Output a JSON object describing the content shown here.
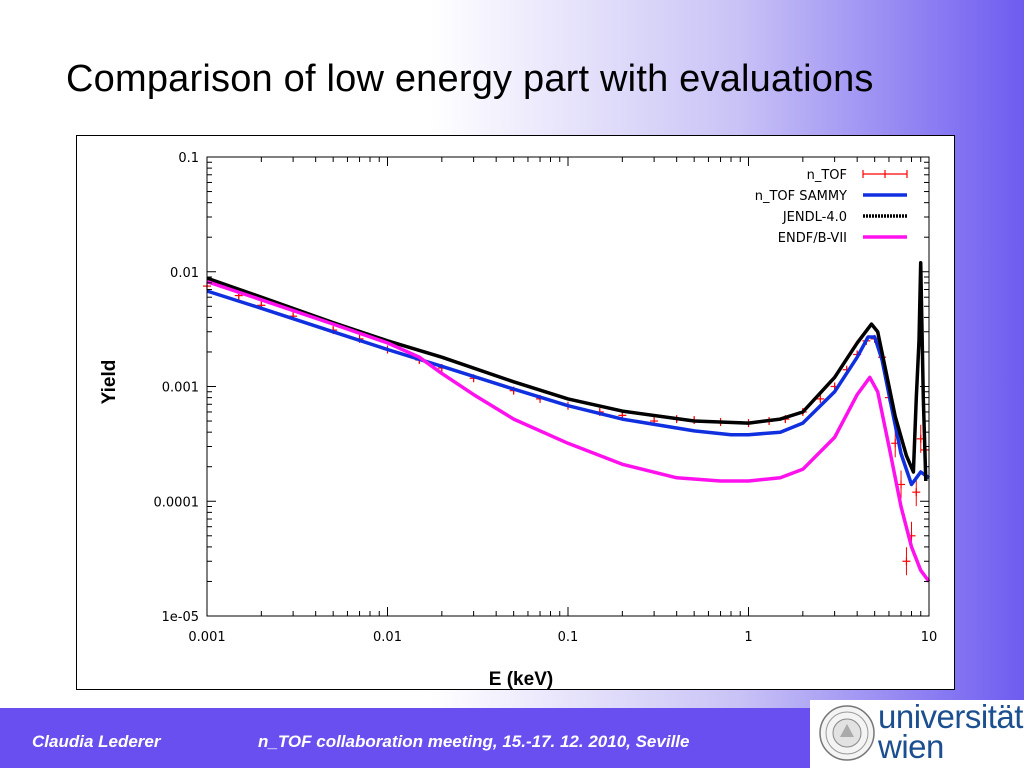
{
  "slide": {
    "title": "Comparison of low energy part with evaluations"
  },
  "footer": {
    "author": "Claudia Lederer",
    "meeting": "n_TOF collaboration meeting, 15.-17. 12. 2010, Seville",
    "logo_line1": "universität",
    "logo_line2": "wien",
    "background_color": "#6a4ff0"
  },
  "chart_data": {
    "type": "line",
    "xscale": "log",
    "yscale": "log",
    "xlabel": "E (keV)",
    "ylabel": "Yield",
    "xlim": [
      0.001,
      10
    ],
    "ylim": [
      1e-05,
      0.1
    ],
    "x_ticks": [
      "0.001",
      "0.01",
      "0.1",
      "1",
      "10"
    ],
    "y_ticks": [
      "0.1",
      "0.01",
      "0.001",
      "0.0001",
      "1e-05"
    ],
    "legend_position": "top-right",
    "series": [
      {
        "name": "n_TOF",
        "color": "#ff0000",
        "style": "points-with-errorbars",
        "points": [
          [
            0.001,
            0.0075
          ],
          [
            0.0015,
            0.0062
          ],
          [
            0.002,
            0.0051
          ],
          [
            0.003,
            0.0041
          ],
          [
            0.005,
            0.0031
          ],
          [
            0.007,
            0.0026
          ],
          [
            0.01,
            0.0021
          ],
          [
            0.015,
            0.0017
          ],
          [
            0.02,
            0.00145
          ],
          [
            0.03,
            0.00118
          ],
          [
            0.05,
            0.00092
          ],
          [
            0.07,
            0.00078
          ],
          [
            0.1,
            0.00068
          ],
          [
            0.15,
            0.0006
          ],
          [
            0.2,
            0.00056
          ],
          [
            0.3,
            0.0005
          ],
          [
            0.4,
            0.00052
          ],
          [
            0.5,
            0.00051
          ],
          [
            0.7,
            0.00049
          ],
          [
            1.0,
            0.00048
          ],
          [
            1.3,
            0.0005
          ],
          [
            1.6,
            0.00052
          ],
          [
            2.0,
            0.0006
          ],
          [
            2.5,
            0.00078
          ],
          [
            3.0,
            0.001
          ],
          [
            3.5,
            0.0014
          ],
          [
            4.0,
            0.0019
          ],
          [
            4.5,
            0.0025
          ],
          [
            5.0,
            0.0026
          ],
          [
            5.5,
            0.0018
          ],
          [
            6.0,
            0.0008
          ],
          [
            6.5,
            0.00032
          ],
          [
            7.0,
            0.00014
          ],
          [
            7.5,
            3e-05
          ],
          [
            8.0,
            5e-05
          ],
          [
            8.5,
            0.00012
          ],
          [
            9.0,
            0.00035
          ],
          [
            9.5,
            0.00028
          ]
        ]
      },
      {
        "name": "n_TOF SAMMY",
        "color": "#1030e0",
        "style": "line",
        "points": [
          [
            0.001,
            0.0068
          ],
          [
            0.002,
            0.0048
          ],
          [
            0.005,
            0.003
          ],
          [
            0.01,
            0.0021
          ],
          [
            0.02,
            0.0015
          ],
          [
            0.05,
            0.00095
          ],
          [
            0.1,
            0.00068
          ],
          [
            0.2,
            0.00052
          ],
          [
            0.5,
            0.00041
          ],
          [
            0.8,
            0.00038
          ],
          [
            1.0,
            0.00038
          ],
          [
            1.5,
            0.0004
          ],
          [
            2.0,
            0.00048
          ],
          [
            3.0,
            0.0009
          ],
          [
            4.0,
            0.0018
          ],
          [
            4.6,
            0.0027
          ],
          [
            5.0,
            0.0027
          ],
          [
            5.5,
            0.0017
          ],
          [
            6.0,
            0.00085
          ],
          [
            7.0,
            0.00026
          ],
          [
            8.0,
            0.00014
          ],
          [
            9.0,
            0.00018
          ],
          [
            10.0,
            0.00016
          ]
        ]
      },
      {
        "name": "JENDL-4.0",
        "color": "#000000",
        "style": "line-dotted",
        "points": [
          [
            0.001,
            0.0088
          ],
          [
            0.002,
            0.006
          ],
          [
            0.005,
            0.0036
          ],
          [
            0.01,
            0.0025
          ],
          [
            0.02,
            0.0018
          ],
          [
            0.05,
            0.0011
          ],
          [
            0.1,
            0.00078
          ],
          [
            0.2,
            0.00061
          ],
          [
            0.5,
            0.0005
          ],
          [
            1.0,
            0.00048
          ],
          [
            1.5,
            0.00052
          ],
          [
            2.0,
            0.0006
          ],
          [
            3.0,
            0.0012
          ],
          [
            4.0,
            0.0024
          ],
          [
            4.8,
            0.0035
          ],
          [
            5.2,
            0.003
          ],
          [
            5.7,
            0.0015
          ],
          [
            6.5,
            0.00055
          ],
          [
            7.5,
            0.00025
          ],
          [
            8.2,
            0.00018
          ],
          [
            8.5,
            0.0008
          ],
          [
            8.8,
            0.0025
          ],
          [
            9.0,
            0.012
          ],
          [
            9.3,
            0.0008
          ],
          [
            9.6,
            0.00015
          ]
        ]
      },
      {
        "name": "ENDF/B-VII",
        "color": "#ff11ee",
        "style": "line",
        "points": [
          [
            0.001,
            0.0082
          ],
          [
            0.002,
            0.0057
          ],
          [
            0.005,
            0.0035
          ],
          [
            0.01,
            0.0024
          ],
          [
            0.015,
            0.0018
          ],
          [
            0.02,
            0.0013
          ],
          [
            0.03,
            0.00085
          ],
          [
            0.05,
            0.00052
          ],
          [
            0.1,
            0.00032
          ],
          [
            0.2,
            0.00021
          ],
          [
            0.4,
            0.00016
          ],
          [
            0.7,
            0.00015
          ],
          [
            1.0,
            0.00015
          ],
          [
            1.5,
            0.00016
          ],
          [
            2.0,
            0.00019
          ],
          [
            3.0,
            0.00036
          ],
          [
            4.0,
            0.00085
          ],
          [
            4.7,
            0.0012
          ],
          [
            5.2,
            0.0009
          ],
          [
            6.0,
            0.0003
          ],
          [
            7.0,
            9e-05
          ],
          [
            8.0,
            4e-05
          ],
          [
            9.0,
            2.5e-05
          ],
          [
            10.0,
            2e-05
          ]
        ]
      }
    ]
  }
}
